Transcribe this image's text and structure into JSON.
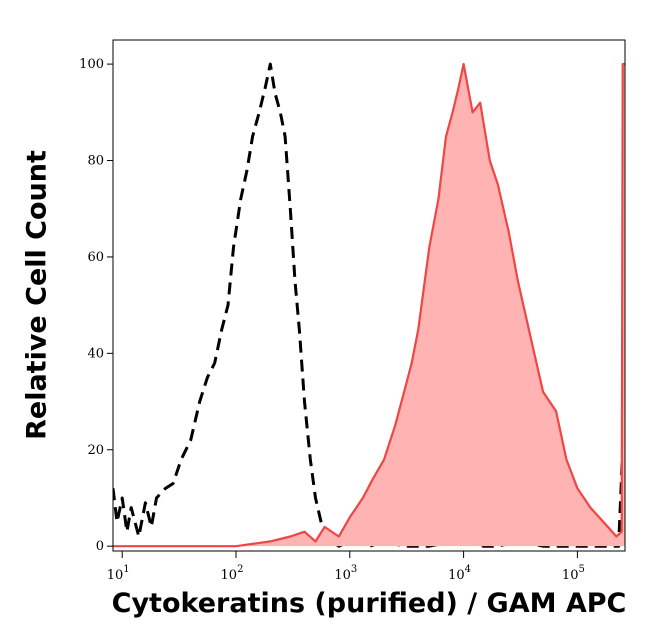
{
  "chart_data": {
    "type": "histogram-overlay",
    "x_label": "Cytokeratins (purified)  / GAM APC",
    "y_label": "Relative Cell Count",
    "log_x": true,
    "xlim": [
      8.3,
      262000
    ],
    "ylim": [
      -1,
      105
    ],
    "xticks": [
      {
        "value": 10,
        "label": "10",
        "exponent": "1"
      },
      {
        "value": 100,
        "label": "10",
        "exponent": "2"
      },
      {
        "value": 1000,
        "label": "10",
        "exponent": "3"
      },
      {
        "value": 10000,
        "label": "10",
        "exponent": "4"
      },
      {
        "value": 100000,
        "label": "10",
        "exponent": "5"
      }
    ],
    "yticks": [
      0,
      20,
      40,
      60,
      80,
      100
    ],
    "series": [
      {
        "color": "#000000",
        "dashed": true,
        "filled": false,
        "x": [
          8.3,
          9,
          10,
          11,
          12,
          14,
          16,
          18,
          20,
          24,
          28,
          33,
          40,
          48,
          56,
          65,
          75,
          85,
          95,
          110,
          125,
          140,
          160,
          180,
          200,
          220,
          245,
          270,
          300,
          330,
          360,
          400,
          450,
          500,
          560,
          620,
          700,
          800,
          1000,
          1500,
          2000,
          3000,
          5000,
          8000,
          10000,
          15000,
          20000,
          30000,
          50000,
          80000,
          120000,
          180000,
          230000,
          250000,
          262000
        ],
        "values": [
          12,
          5,
          10,
          3,
          8,
          2,
          9,
          4,
          10,
          12,
          13,
          18,
          22,
          30,
          35,
          38,
          45,
          50,
          62,
          72,
          78,
          85,
          90,
          95,
          100,
          94,
          90,
          85,
          70,
          55,
          45,
          30,
          18,
          10,
          5,
          2,
          1,
          0,
          1,
          0,
          1,
          0,
          0,
          1,
          1,
          0,
          0,
          1,
          0,
          0,
          0,
          0,
          0,
          20,
          25
        ]
      },
      {
        "color": "#f04545",
        "fill_color": "#ffb3b3",
        "dashed": false,
        "filled": true,
        "x": [
          8.3,
          20,
          50,
          100,
          200,
          300,
          400,
          500,
          600,
          800,
          1000,
          1300,
          1600,
          2000,
          2500,
          3000,
          3500,
          4000,
          5000,
          6000,
          7000,
          8000,
          9000,
          10000,
          12000,
          14000,
          17000,
          20000,
          25000,
          30000,
          40000,
          50000,
          65000,
          80000,
          100000,
          130000,
          170000,
          220000,
          245000,
          250000,
          262000
        ],
        "values": [
          0,
          0,
          0,
          0,
          1,
          2,
          3,
          1,
          4,
          2,
          6,
          10,
          14,
          18,
          25,
          32,
          38,
          45,
          62,
          72,
          85,
          90,
          95,
          100,
          90,
          92,
          80,
          75,
          65,
          55,
          42,
          32,
          28,
          18,
          12,
          8,
          5,
          2,
          3,
          100,
          100
        ]
      }
    ]
  }
}
